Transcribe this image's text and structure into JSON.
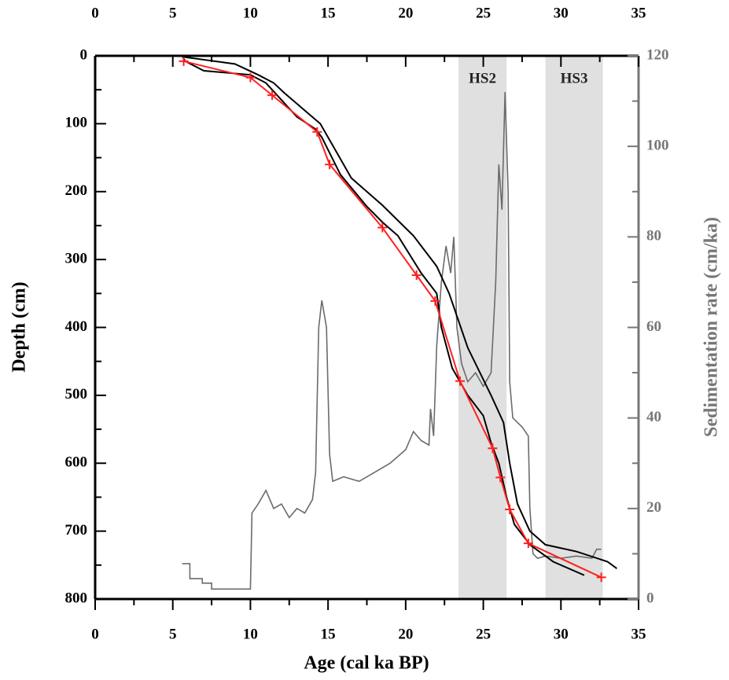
{
  "chart_data": {
    "type": "line",
    "xlabel": "Age (cal ka BP)",
    "ylabel": "Depth (cm)",
    "y2label": "Sedimentation rate (cm/ka)",
    "xlim": [
      0,
      35
    ],
    "xticks": [
      0,
      5,
      10,
      15,
      20,
      25,
      30,
      35
    ],
    "ylim": [
      0,
      800
    ],
    "yticks": [
      0,
      100,
      200,
      300,
      400,
      500,
      600,
      700,
      800
    ],
    "y_inverted": true,
    "y2lim": [
      0,
      120
    ],
    "y2ticks": [
      0,
      20,
      40,
      60,
      80,
      100,
      120
    ],
    "y2_color": "#777777",
    "bands": [
      {
        "label": "HS2",
        "xmin": 23.4,
        "xmax": 26.5,
        "color": "#e0e0e0"
      },
      {
        "label": "HS3",
        "xmin": 29.0,
        "xmax": 32.7,
        "color": "#e0e0e0"
      }
    ],
    "series": [
      {
        "color": "#6b6b6b",
        "axis": "y2",
        "x": [
          5.6,
          6.1,
          6.1,
          6.9,
          6.9,
          7.5,
          7.5,
          10,
          10.1,
          10.5,
          11,
          11.5,
          12,
          12.5,
          13,
          13.5,
          14,
          14.2,
          14.4,
          14.6,
          14.9,
          15.1,
          15.3,
          16,
          17,
          18,
          19,
          20,
          20.5,
          21,
          21.5,
          21.6,
          21.8,
          22,
          22.3,
          22.6,
          22.9,
          23.1,
          23.3,
          23.6,
          24,
          24.5,
          25,
          25.5,
          25.8,
          26,
          26.2,
          26.4,
          26.6,
          26.7,
          26.9,
          27.5,
          27.9,
          28,
          28.2,
          28.5,
          29,
          30,
          31,
          32,
          32.3,
          32.6
        ],
        "values": [
          7.8,
          7.8,
          4.5,
          4.5,
          3.5,
          3.5,
          2.2,
          2.2,
          19,
          21,
          24,
          20,
          21,
          18,
          20,
          19,
          22,
          28,
          60,
          66,
          60,
          32,
          26,
          27,
          26,
          28,
          30,
          33,
          37,
          35,
          34,
          42,
          36,
          56,
          70,
          78,
          72,
          80,
          60,
          52,
          48,
          50,
          47,
          50,
          70,
          96,
          86,
          112,
          90,
          48,
          40,
          38,
          36,
          20,
          10,
          9,
          9.5,
          9,
          9.5,
          9,
          11,
          11
        ]
      },
      {
        "color": "#000000",
        "x": [
          5.6,
          5.8,
          7,
          10,
          11,
          13,
          14.2,
          14.6,
          15.8,
          17.5,
          18.5,
          19.5,
          21,
          22,
          22.3,
          23,
          24,
          25,
          25.5,
          26,
          26.5,
          27,
          28,
          29.5,
          31.5
        ],
        "values": [
          0,
          8,
          22,
          28,
          40,
          90,
          108,
          120,
          175,
          222,
          245,
          265,
          320,
          350,
          400,
          460,
          500,
          530,
          570,
          600,
          650,
          690,
          720,
          745,
          765
        ]
      },
      {
        "color": "#000000",
        "x": [
          5.6,
          5.8,
          9,
          10.5,
          11.5,
          12.2,
          14.5,
          15.5,
          16.5,
          18.5,
          20.5,
          22,
          22.8,
          24,
          25.5,
          26.3,
          26.7,
          27.2,
          28,
          29,
          31,
          33,
          33.6
        ],
        "values": [
          0,
          2,
          12,
          28,
          40,
          55,
          100,
          140,
          180,
          220,
          265,
          310,
          350,
          430,
          500,
          540,
          600,
          660,
          700,
          720,
          730,
          745,
          755
        ]
      },
      {
        "color": "#ff2020",
        "marker": "+",
        "x": [
          5.7,
          10.0,
          11.4,
          14.3,
          15.1,
          18.5,
          20.7,
          21.9,
          23.5,
          25.6,
          26.1,
          26.7,
          27.9,
          32.6
        ],
        "values": [
          8,
          32,
          58,
          112,
          160,
          253,
          323,
          361,
          479,
          578,
          621,
          668,
          718,
          768
        ]
      }
    ]
  }
}
